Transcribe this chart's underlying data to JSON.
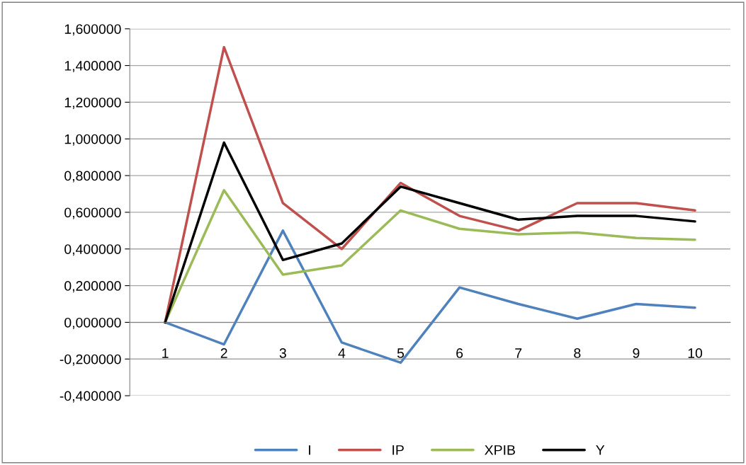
{
  "chart_data": {
    "type": "line",
    "categories": [
      "1",
      "2",
      "3",
      "4",
      "5",
      "6",
      "7",
      "8",
      "9",
      "10"
    ],
    "series": [
      {
        "name": "I",
        "color": "#4f81bd",
        "values": [
          0,
          -0.12,
          0.5,
          -0.11,
          -0.22,
          0.19,
          0.1,
          0.02,
          0.1,
          0.08
        ]
      },
      {
        "name": "IP",
        "color": "#c0504d",
        "values": [
          0,
          1.5,
          0.65,
          0.4,
          0.76,
          0.58,
          0.5,
          0.65,
          0.65,
          0.61
        ]
      },
      {
        "name": "XPIB",
        "color": "#9bbb59",
        "values": [
          0,
          0.72,
          0.26,
          0.31,
          0.61,
          0.51,
          0.48,
          0.49,
          0.46,
          0.45
        ]
      },
      {
        "name": "Y",
        "color": "#000000",
        "values": [
          0,
          0.98,
          0.34,
          0.43,
          0.74,
          0.65,
          0.56,
          0.58,
          0.58,
          0.55
        ]
      }
    ],
    "ylim": [
      -0.4,
      1.6
    ],
    "yticks": [
      {
        "value": -0.4,
        "label": "-0,400000"
      },
      {
        "value": -0.2,
        "label": "-0,200000"
      },
      {
        "value": 0,
        "label": "0,000000"
      },
      {
        "value": 0.2,
        "label": "0,200000"
      },
      {
        "value": 0.4,
        "label": "0,400000"
      },
      {
        "value": 0.6,
        "label": "0,600000"
      },
      {
        "value": 0.8,
        "label": "0,800000"
      },
      {
        "value": 1.0,
        "label": "1,000000"
      },
      {
        "value": 1.2,
        "label": "1,200000"
      },
      {
        "value": 1.4,
        "label": "1,400000"
      },
      {
        "value": 1.6,
        "label": "1,600000"
      }
    ],
    "grid": "y",
    "legend": "bottom",
    "marker": "none",
    "line_style": "solid"
  }
}
